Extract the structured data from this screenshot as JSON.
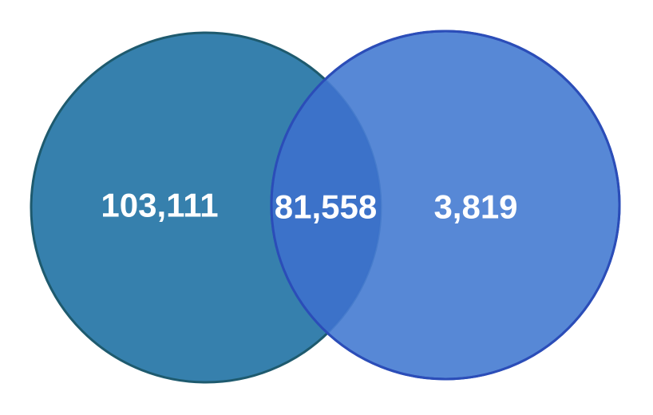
{
  "venn": {
    "left_only": "103,111",
    "overlap": "81,558",
    "right_only": "3,819",
    "colors": {
      "left_fill": "#3680ad",
      "left_stroke": "#1e5a6e",
      "right_fill": "#4a7fd3",
      "right_stroke": "#2b4db8",
      "overlap_tint": "#3a70c8"
    }
  }
}
